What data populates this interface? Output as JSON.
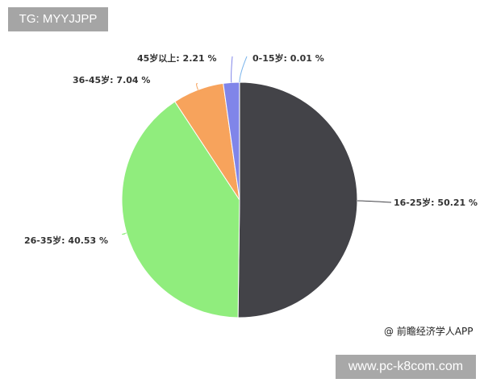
{
  "watermark_tag": "TG: MYYJJPP",
  "source": "@ 前瞻经济学人APP",
  "site": "www.pc-k8com.com",
  "chart_data": {
    "type": "pie",
    "start_angle_deg": 0,
    "direction": "clockwise",
    "slices": [
      {
        "label": "16-25岁",
        "value": 50.21,
        "text": "16-25岁: 50.21 %",
        "color": "#434348"
      },
      {
        "label": "26-35岁",
        "value": 40.53,
        "text": "26-35岁: 40.53 %",
        "color": "#90ed7d"
      },
      {
        "label": "36-45岁",
        "value": 7.04,
        "text": "36-45岁: 7.04 %",
        "color": "#f7a35c"
      },
      {
        "label": "45岁以上",
        "value": 2.21,
        "text": "45岁以上: 2.21 %",
        "color": "#8085e9"
      },
      {
        "label": "0-15岁",
        "value": 0.01,
        "text": "0-15岁: 0.01 %",
        "color": "#7cb5ec"
      }
    ]
  }
}
